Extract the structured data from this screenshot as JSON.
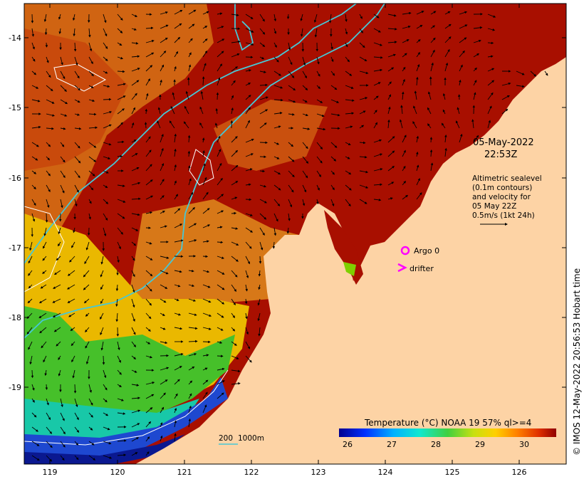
{
  "map": {
    "date": "05-May-2022",
    "time": "22:53Z",
    "legend_lines": [
      "Altimetric sealevel",
      "(0.1m contours)",
      "and velocity for",
      "05 May 22Z",
      "0.5m/s (1kt 24h)"
    ],
    "markers": {
      "argo_label": "Argo 0",
      "drifter_label": "drifter"
    },
    "depth_key": {
      "label_200": "200",
      "label_1000": "1000m"
    },
    "colorbar": {
      "title": "Temperature (°C) NOAA 19 57% ql>=4",
      "ticks": [
        "26",
        "27",
        "28",
        "29",
        "30"
      ]
    },
    "credit": "© IMOS 12-May-2022 20:56:53 Hobart time",
    "lat_ticks": [
      "-14",
      "-15",
      "-16",
      "-17",
      "-18",
      "-19"
    ],
    "lon_ticks": [
      "119",
      "120",
      "121",
      "122",
      "123",
      "124",
      "125",
      "126"
    ],
    "colors": {
      "land": "#fdd3a5",
      "sst_hot": "#a80f00",
      "sst_orange": "#d4690f",
      "sst_yellow": "#f2c800",
      "sst_green": "#4fc62a",
      "sst_blue": "#1f4fd0",
      "contour_cyan": "#46c8d6",
      "marker_magenta": "#ff00ff"
    }
  }
}
